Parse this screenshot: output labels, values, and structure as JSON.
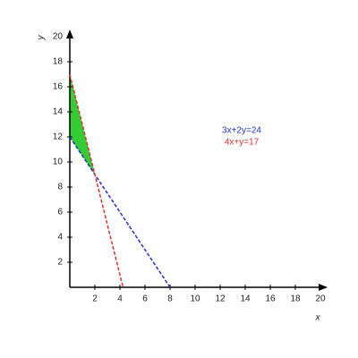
{
  "chart_data": {
    "type": "line",
    "xlabel": "x",
    "ylabel": "y",
    "xlim": [
      0,
      20
    ],
    "ylim": [
      0,
      20
    ],
    "xticks": [
      2,
      4,
      6,
      8,
      10,
      12,
      14,
      16,
      18,
      20
    ],
    "yticks": [
      2,
      4,
      6,
      8,
      10,
      12,
      14,
      16,
      18,
      20
    ],
    "series": [
      {
        "name": "3x+2y=24",
        "color": "#2233cc",
        "x": [
          0,
          8
        ],
        "values": [
          12,
          0
        ]
      },
      {
        "name": "4x+y=17",
        "color": "#dd3333",
        "x": [
          0,
          4.25
        ],
        "values": [
          17,
          0
        ]
      }
    ],
    "shaded_region": {
      "color": "#33cc33",
      "x": [
        0,
        2,
        0
      ],
      "values": [
        12,
        9,
        17
      ]
    }
  }
}
